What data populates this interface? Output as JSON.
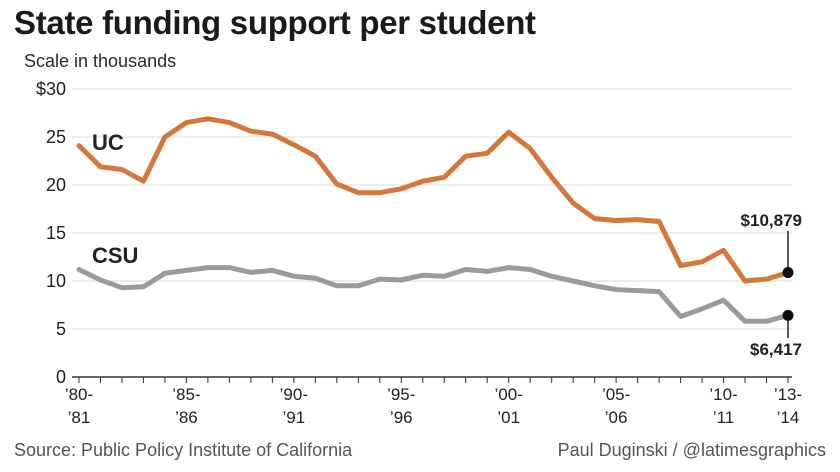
{
  "title": "State funding support per student",
  "subtitle": "Scale in thousands",
  "source": "Source: Public Policy Institute of California",
  "credit": "Paul Duginski / @latimesgraphics",
  "chart_data": {
    "type": "line",
    "y_ticks": [
      {
        "value": 0,
        "label": "0"
      },
      {
        "value": 5,
        "label": "5"
      },
      {
        "value": 10,
        "label": "10"
      },
      {
        "value": 15,
        "label": "15"
      },
      {
        "value": 20,
        "label": "20"
      },
      {
        "value": 25,
        "label": "25"
      },
      {
        "value": 30,
        "label": "$30"
      }
    ],
    "ylim": [
      0,
      30
    ],
    "grid": true,
    "x_years": [
      "1980-81",
      "1981-82",
      "1982-83",
      "1983-84",
      "1984-85",
      "1985-86",
      "1986-87",
      "1987-88",
      "1988-89",
      "1989-90",
      "1990-91",
      "1991-92",
      "1992-93",
      "1993-94",
      "1994-95",
      "1995-96",
      "1996-97",
      "1997-98",
      "1998-99",
      "1999-00",
      "2000-01",
      "2001-02",
      "2002-03",
      "2003-04",
      "2004-05",
      "2005-06",
      "2006-07",
      "2007-08",
      "2008-09",
      "2009-10",
      "2010-11",
      "2011-12",
      "2012-13",
      "2013-14"
    ],
    "x_tick_labels": [
      {
        "index": 0,
        "line1": "’80-",
        "line2": "’81"
      },
      {
        "index": 5,
        "line1": "’85-",
        "line2": "’86"
      },
      {
        "index": 10,
        "line1": "’90-",
        "line2": "’91"
      },
      {
        "index": 15,
        "line1": "’95-",
        "line2": "’96"
      },
      {
        "index": 20,
        "line1": "’00-",
        "line2": "’01"
      },
      {
        "index": 25,
        "line1": "’05-",
        "line2": "’06"
      },
      {
        "index": 30,
        "line1": "’10-",
        "line2": "’11"
      },
      {
        "index": 33,
        "line1": "’13-",
        "line2": "’14"
      }
    ],
    "series": [
      {
        "name": "UC",
        "color": "#d4773a",
        "values": [
          24.1,
          21.9,
          21.6,
          20.4,
          25.0,
          26.5,
          26.9,
          26.5,
          25.6,
          25.3,
          24.2,
          23.0,
          20.1,
          19.2,
          19.2,
          19.6,
          20.4,
          20.8,
          23.0,
          23.3,
          25.5,
          23.8,
          20.8,
          18.1,
          16.5,
          16.3,
          16.4,
          16.2,
          11.6,
          12.0,
          13.2,
          10.0,
          10.2,
          10.879
        ],
        "end_label": "$10,879"
      },
      {
        "name": "CSU",
        "color": "#9a9a9a",
        "values": [
          11.2,
          10.1,
          9.3,
          9.4,
          10.8,
          11.1,
          11.4,
          11.4,
          10.9,
          11.1,
          10.5,
          10.3,
          9.5,
          9.5,
          10.2,
          10.1,
          10.6,
          10.5,
          11.2,
          11.0,
          11.4,
          11.2,
          10.5,
          10.0,
          9.5,
          9.1,
          9.0,
          8.9,
          6.3,
          7.1,
          8.0,
          5.8,
          5.8,
          6.417
        ],
        "end_label": "$6,417"
      }
    ]
  }
}
